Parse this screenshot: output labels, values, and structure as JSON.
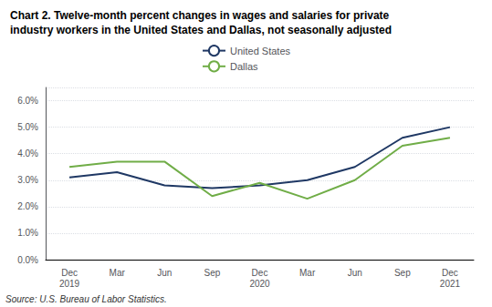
{
  "chart_data": {
    "type": "line",
    "title": "Chart 2. Twelve-month percent changes in wages and salaries for private\nindustry workers in the United States and Dallas, not seasonally adjusted",
    "annotations": [
      "Source: U.S. Bureau of Labor Statistics."
    ],
    "categories": [
      "Dec\n2019",
      "Mar",
      "Jun",
      "Sep",
      "Dec\n2020",
      "Mar",
      "Jun",
      "Sep",
      "Dec\n2021"
    ],
    "series": [
      {
        "name": "United States",
        "color": "#1F3864",
        "values": [
          0.031,
          0.033,
          0.028,
          0.027,
          0.028,
          0.03,
          0.035,
          0.046,
          0.05
        ]
      },
      {
        "name": "Dallas",
        "color": "#70AD47",
        "values": [
          0.035,
          0.037,
          0.037,
          0.024,
          0.029,
          0.023,
          0.03,
          0.043,
          0.046
        ]
      }
    ],
    "ylim": [
      0.0,
      0.065
    ],
    "yticks": [
      {
        "value": 0.0,
        "label": "0.0%"
      },
      {
        "value": 0.01,
        "label": "1.0%"
      },
      {
        "value": 0.02,
        "label": "2.0%"
      },
      {
        "value": 0.03,
        "label": "3.0%"
      },
      {
        "value": 0.04,
        "label": "4.0%"
      },
      {
        "value": 0.05,
        "label": "5.0%"
      },
      {
        "value": 0.06,
        "label": "6.0%"
      }
    ],
    "grid": true,
    "legend": "top"
  }
}
